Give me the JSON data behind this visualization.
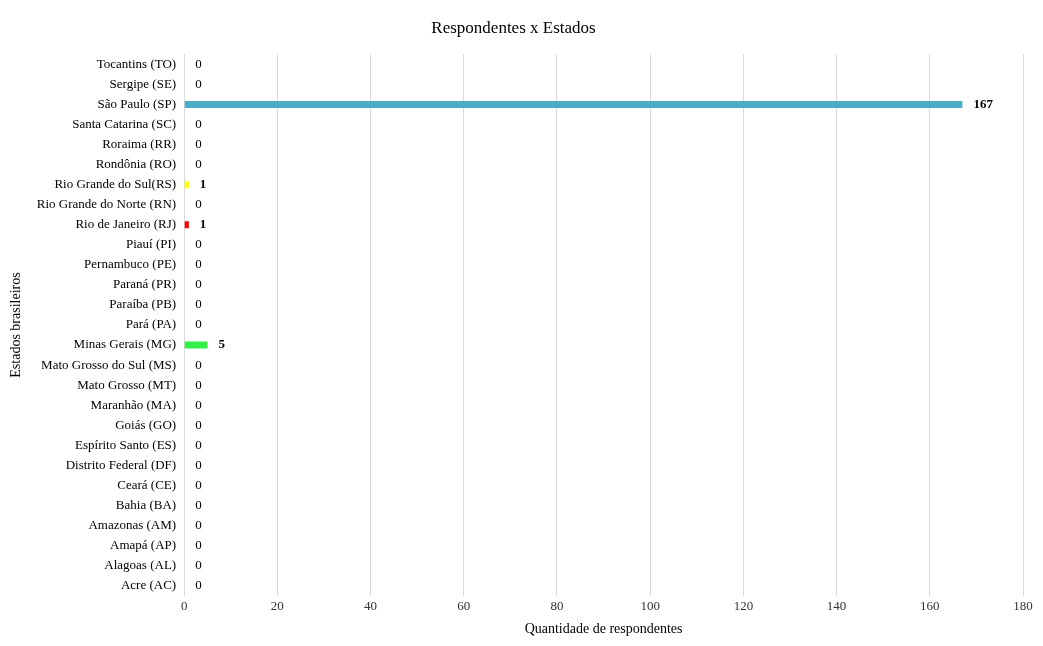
{
  "chart_data": {
    "type": "bar",
    "orientation": "horizontal",
    "title": "Respondentes x Estados",
    "xlabel": "Quantidade de respondentes",
    "ylabel": "Estados brasileiros",
    "categories": [
      "Tocantins (TO)",
      "Sergipe (SE)",
      "São Paulo (SP)",
      "Santa Catarina (SC)",
      "Roraima (RR)",
      "Rondônia (RO)",
      "Rio Grande do Sul(RS)",
      "Rio Grande do Norte (RN)",
      "Rio de Janeiro (RJ)",
      "Piauí (PI)",
      "Pernambuco (PE)",
      "Paraná (PR)",
      "Paraíba (PB)",
      "Pará (PA)",
      "Minas Gerais (MG)",
      "Mato Grosso do Sul (MS)",
      "Mato Grosso (MT)",
      "Maranhão (MA)",
      "Goiás (GO)",
      "Espírito Santo (ES)",
      "Distrito Federal (DF)",
      "Ceará (CE)",
      "Bahia (BA)",
      "Amazonas (AM)",
      "Amapá (AP)",
      "Alagoas (AL)",
      "Acre (AC)"
    ],
    "values": [
      0,
      0,
      167,
      0,
      0,
      0,
      1,
      0,
      1,
      0,
      0,
      0,
      0,
      0,
      5,
      0,
      0,
      0,
      0,
      0,
      0,
      0,
      0,
      0,
      0,
      0,
      0
    ],
    "colors": [
      "#4bacc6",
      "#4bacc6",
      "#4bacc6",
      "#4bacc6",
      "#4bacc6",
      "#4bacc6",
      "#ffff00",
      "#4bacc6",
      "#ff0000",
      "#4bacc6",
      "#4bacc6",
      "#4bacc6",
      "#4bacc6",
      "#4bacc6",
      "#33ee44",
      "#4bacc6",
      "#4bacc6",
      "#4bacc6",
      "#4bacc6",
      "#4bacc6",
      "#4bacc6",
      "#4bacc6",
      "#4bacc6",
      "#4bacc6",
      "#4bacc6",
      "#4bacc6",
      "#4bacc6"
    ],
    "xlim": [
      0,
      180
    ],
    "xticks": [
      0,
      20,
      40,
      60,
      80,
      100,
      120,
      140,
      160,
      180
    ],
    "grid": "x",
    "legend": false,
    "data_labels": true
  }
}
